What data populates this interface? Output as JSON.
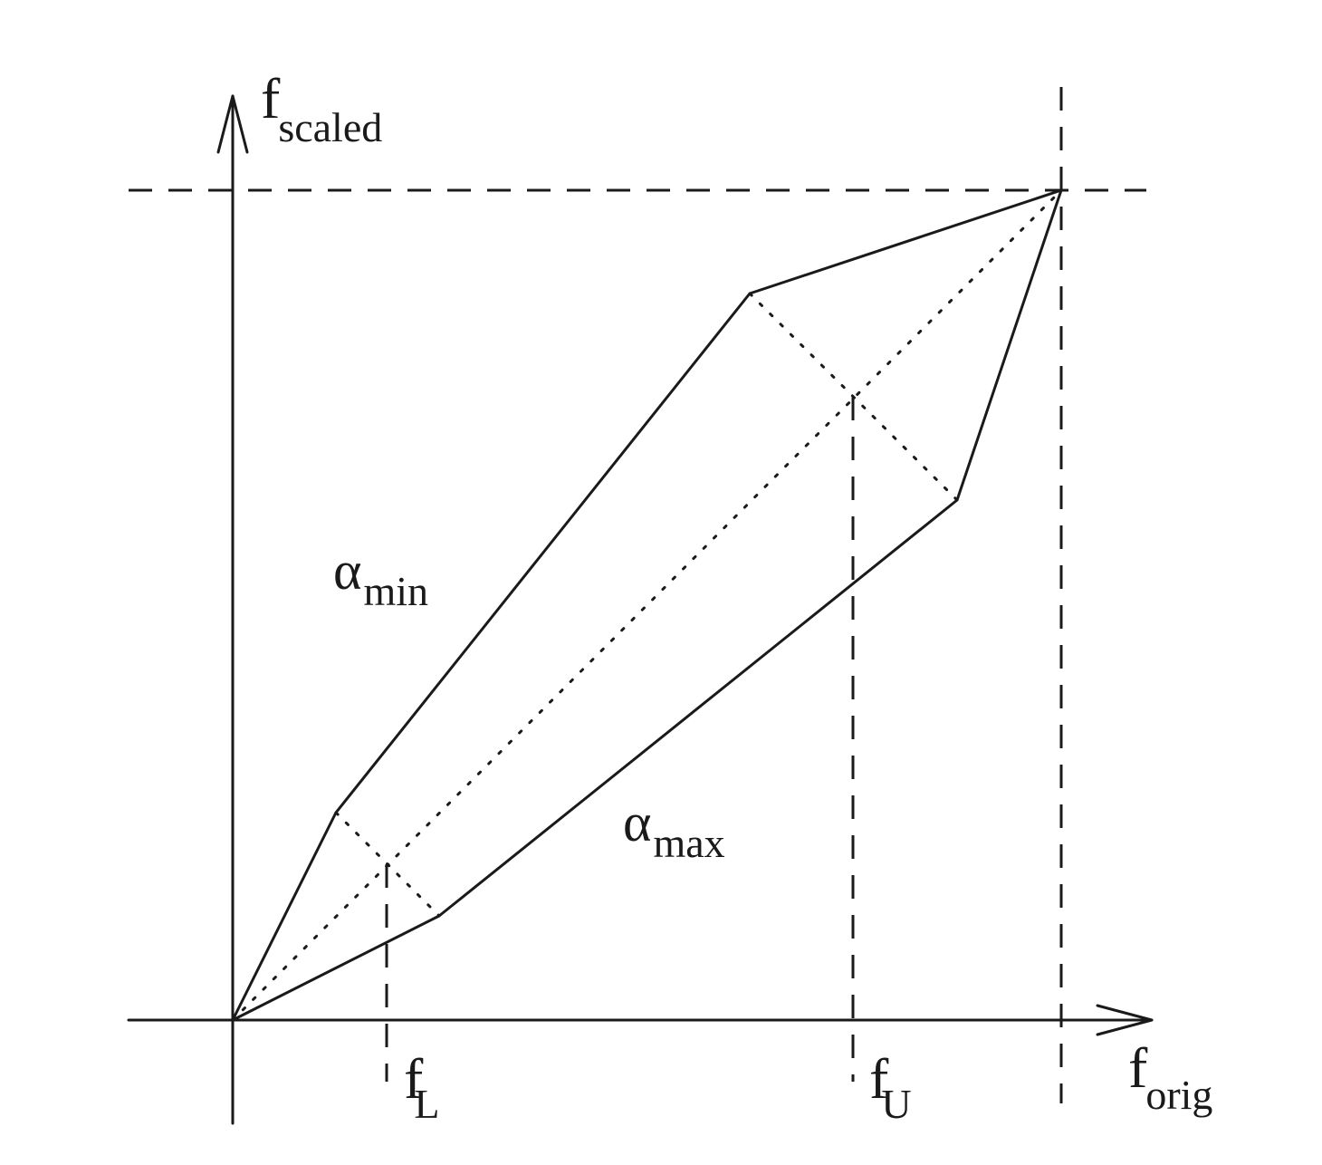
{
  "figure": {
    "y_axis_label": {
      "main": "f",
      "sub": "scaled"
    },
    "x_axis_label": {
      "main": "f",
      "sub": "orig"
    },
    "tick_labels": {
      "lower": {
        "main": "f",
        "sub": "L"
      },
      "upper": {
        "main": "f",
        "sub": "U"
      }
    },
    "region_labels": {
      "upper_curve": {
        "symbol": "α",
        "sub": "min"
      },
      "lower_curve": {
        "symbol": "α",
        "sub": "max"
      }
    }
  }
}
